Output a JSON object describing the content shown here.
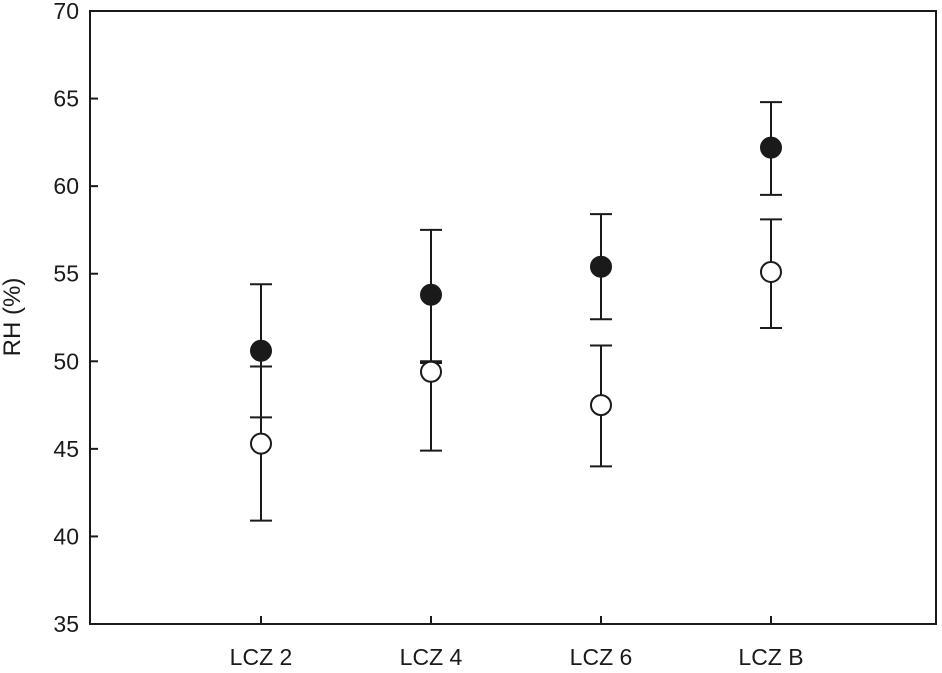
{
  "chart_data": {
    "type": "scatter",
    "title": "",
    "xlabel": "",
    "ylabel": "RH (%)",
    "categories": [
      "LCZ 2",
      "LCZ 4",
      "LCZ 6",
      "LCZ B"
    ],
    "ylim": [
      35,
      70
    ],
    "yticks": [
      35,
      40,
      45,
      50,
      55,
      60,
      65,
      70
    ],
    "grid": false,
    "legend": "none",
    "series": [
      {
        "marker": "filled-circle",
        "color": "#1a1a1a",
        "values": [
          50.6,
          53.8,
          55.4,
          62.2
        ],
        "error_low": [
          46.8,
          50.0,
          52.4,
          59.5
        ],
        "error_high": [
          54.4,
          57.5,
          58.4,
          64.8
        ]
      },
      {
        "marker": "open-circle",
        "color": "#ffffff",
        "values": [
          45.3,
          49.4,
          47.5,
          55.1
        ],
        "error_low": [
          40.9,
          44.9,
          44.0,
          51.9
        ],
        "error_high": [
          49.7,
          49.9,
          50.9,
          58.1
        ]
      }
    ]
  }
}
